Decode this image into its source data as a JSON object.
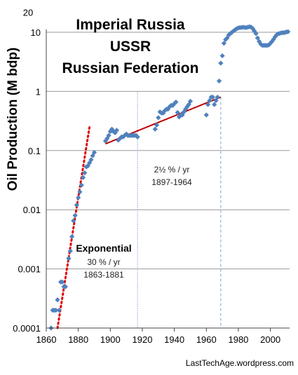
{
  "chart_data": {
    "type": "scatter",
    "title_lines": [
      "Imperial Russia",
      "USSR",
      "Russian Federation"
    ],
    "ylabel": "Oil Production (M bdp)",
    "xlabel": "",
    "yscale": "log",
    "xlim": [
      1860,
      2012
    ],
    "ylim": [
      0.0001,
      20
    ],
    "x_ticks": [
      "1860",
      "1880",
      "1900",
      "1920",
      "1940",
      "1960",
      "1980",
      "2000"
    ],
    "y_ticks": [
      "0.0001",
      "0.001",
      "0.01",
      "0.1",
      "1",
      "10",
      "20"
    ],
    "grid": true,
    "series_color": "#4F81BD",
    "points": [
      [
        1863,
        0.0001
      ],
      [
        1864,
        0.0002
      ],
      [
        1865,
        0.0002
      ],
      [
        1866,
        0.0002
      ],
      [
        1867,
        0.0003
      ],
      [
        1868,
        0.0002
      ],
      [
        1869,
        0.0006
      ],
      [
        1870,
        0.0006
      ],
      [
        1871,
        0.0005
      ],
      [
        1872,
        0.0005
      ],
      [
        1874,
        0.0015
      ],
      [
        1875,
        0.002
      ],
      [
        1876,
        0.0035
      ],
      [
        1877,
        0.0065
      ],
      [
        1878,
        0.008
      ],
      [
        1879,
        0.012
      ],
      [
        1880,
        0.016
      ],
      [
        1881,
        0.02
      ],
      [
        1882,
        0.026
      ],
      [
        1883,
        0.035
      ],
      [
        1884,
        0.042
      ],
      [
        1885,
        0.053
      ],
      [
        1886,
        0.055
      ],
      [
        1887,
        0.062
      ],
      [
        1888,
        0.07
      ],
      [
        1889,
        0.082
      ],
      [
        1890,
        0.093
      ],
      [
        1897,
        0.145
      ],
      [
        1898,
        0.16
      ],
      [
        1899,
        0.18
      ],
      [
        1900,
        0.21
      ],
      [
        1901,
        0.23
      ],
      [
        1902,
        0.21
      ],
      [
        1903,
        0.2
      ],
      [
        1904,
        0.22
      ],
      [
        1905,
        0.15
      ],
      [
        1906,
        0.16
      ],
      [
        1907,
        0.17
      ],
      [
        1908,
        0.17
      ],
      [
        1909,
        0.18
      ],
      [
        1910,
        0.19
      ],
      [
        1911,
        0.18
      ],
      [
        1912,
        0.18
      ],
      [
        1913,
        0.18
      ],
      [
        1914,
        0.18
      ],
      [
        1915,
        0.18
      ],
      [
        1916,
        0.18
      ],
      [
        1917,
        0.17
      ],
      [
        1928,
        0.23
      ],
      [
        1929,
        0.27
      ],
      [
        1930,
        0.36
      ],
      [
        1931,
        0.45
      ],
      [
        1932,
        0.43
      ],
      [
        1933,
        0.43
      ],
      [
        1934,
        0.47
      ],
      [
        1935,
        0.5
      ],
      [
        1936,
        0.5
      ],
      [
        1937,
        0.55
      ],
      [
        1938,
        0.58
      ],
      [
        1939,
        0.58
      ],
      [
        1940,
        0.62
      ],
      [
        1941,
        0.66
      ],
      [
        1942,
        0.44
      ],
      [
        1943,
        0.37
      ],
      [
        1944,
        0.4
      ],
      [
        1945,
        0.4
      ],
      [
        1946,
        0.45
      ],
      [
        1947,
        0.5
      ],
      [
        1948,
        0.55
      ],
      [
        1949,
        0.6
      ],
      [
        1950,
        0.68
      ],
      [
        1960,
        0.4
      ],
      [
        1961,
        0.6
      ],
      [
        1962,
        0.7
      ],
      [
        1963,
        0.8
      ],
      [
        1964,
        0.8
      ],
      [
        1965,
        0.6
      ],
      [
        1966,
        0.7
      ],
      [
        1967,
        0.8
      ],
      [
        1968,
        1.5
      ],
      [
        1969,
        3.0
      ],
      [
        1970,
        4.0
      ],
      [
        1971,
        6.5
      ],
      [
        1972,
        7.5
      ],
      [
        1973,
        8.0
      ],
      [
        1974,
        9.0
      ],
      [
        1975,
        9.5
      ],
      [
        1976,
        10.0
      ],
      [
        1977,
        10.5
      ],
      [
        1978,
        11.0
      ],
      [
        1979,
        11.5
      ],
      [
        1980,
        11.8
      ],
      [
        1981,
        12.0
      ],
      [
        1982,
        12.0
      ],
      [
        1983,
        12.2
      ],
      [
        1984,
        12.0
      ],
      [
        1985,
        12.0
      ],
      [
        1986,
        12.2
      ],
      [
        1987,
        12.4
      ],
      [
        1988,
        12.2
      ],
      [
        1989,
        11.5
      ],
      [
        1990,
        10.5
      ],
      [
        1991,
        9.5
      ],
      [
        1992,
        8.0
      ],
      [
        1993,
        7.0
      ],
      [
        1994,
        6.3
      ],
      [
        1995,
        6.0
      ],
      [
        1996,
        6.0
      ],
      [
        1997,
        6.0
      ],
      [
        1998,
        6.0
      ],
      [
        1999,
        6.1
      ],
      [
        2000,
        6.5
      ],
      [
        2001,
        7.0
      ],
      [
        2002,
        7.6
      ],
      [
        2003,
        8.4
      ],
      [
        2004,
        9.1
      ],
      [
        2005,
        9.4
      ],
      [
        2006,
        9.6
      ],
      [
        2007,
        9.8
      ],
      [
        2008,
        9.8
      ],
      [
        2009,
        9.9
      ],
      [
        2010,
        10.1
      ],
      [
        2011,
        10.2
      ]
    ],
    "trend_exponential": {
      "label": "Exponential",
      "rate": "30 % / yr",
      "period": "1863-1881",
      "from": [
        1867,
        0.0001
      ],
      "to": [
        1887,
        0.25
      ],
      "color": "#E00000"
    },
    "trend_linear": {
      "rate": "2½ % / yr",
      "period": "1897-1964",
      "from": [
        1897,
        0.13
      ],
      "to": [
        1969,
        0.8
      ],
      "color": "#C00000"
    },
    "markers": [
      1917,
      1969
    ],
    "credit": "LastTechAge.wordpress.com"
  }
}
